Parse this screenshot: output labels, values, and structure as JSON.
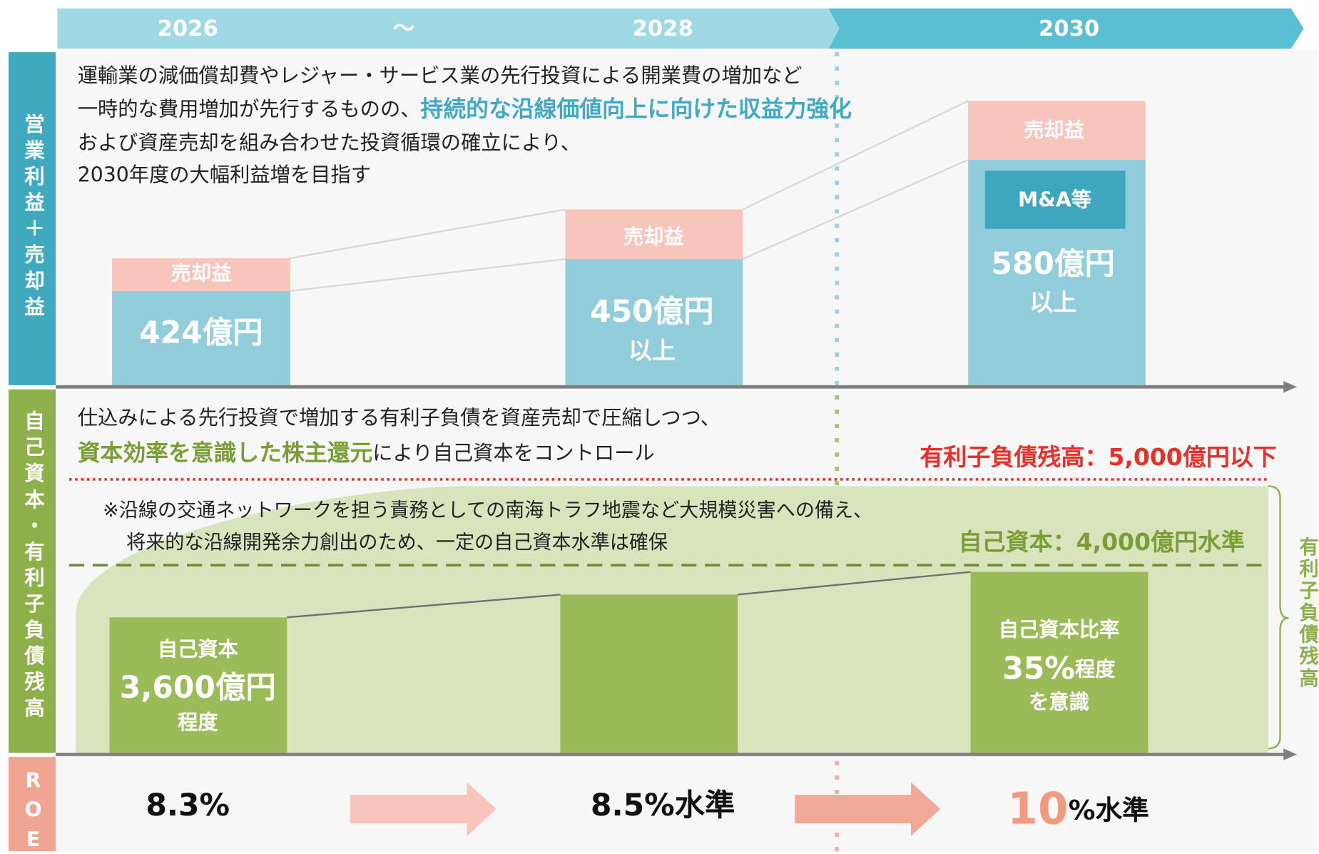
{
  "header": {
    "periods": [
      "2026",
      "～",
      "2028",
      "2030"
    ]
  },
  "side_labels": {
    "profit": "営業利益＋売却益",
    "equity": "自己資本・有利子負債残高",
    "roe": "ROE",
    "debt": "有利子負債残高"
  },
  "profit": {
    "line1": "運輸業の減価償却費やレジャー・サービス業の先行投資による開業費の増加など",
    "line2": "一時的な費用増加が先行するものの、",
    "line2_highlight": "持続的な沿線価値向上に向けた収益力強化",
    "line3": "および資産売却を組み合わせた投資循環の確立により、",
    "line4": "2030年度の大幅利益増を目指す",
    "bars": [
      {
        "top": "売却益",
        "main": "424億円"
      },
      {
        "top": "売却益",
        "main": "450億円",
        "sub": "以上"
      },
      {
        "top": "売却益",
        "box": "M&A等",
        "main": "580億円",
        "sub": "以上"
      }
    ]
  },
  "equity": {
    "line1": "仕込みによる先行投資で増加する有利子負債を資産売却で圧縮しつつ、",
    "line2_highlight": "資本効率を意識した株主還元",
    "line2": "により自己資本をコントロール",
    "debt_target": "有利子負債残高：5,000億円以下",
    "note1": "※沿線の交通ネットワークを担う責務としての南海トラフ地震など大規模災害への備え、",
    "note2": "将来的な沿線開発余力創出のため、一定の自己資本水準は確保",
    "equity_target": "自己資本：4,000億円水準",
    "bar1": {
      "label": "自己資本",
      "value": "3,600億円",
      "sub": "程度"
    },
    "bar3": {
      "label": "自己資本比率",
      "value": "35%",
      "value_suffix": "程度",
      "sub": "を意識"
    }
  },
  "roe": {
    "v2026": "8.3%",
    "v2028": "8.5%水準",
    "v2030": "10",
    "v2030_suffix": "%水準"
  }
}
